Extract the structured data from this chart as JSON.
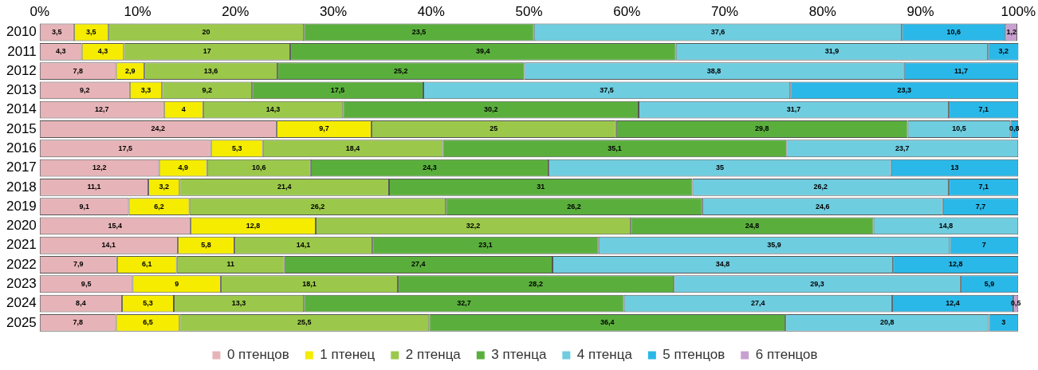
{
  "chart_data": {
    "type": "bar",
    "orientation": "horizontal",
    "stacked": true,
    "legend": "bottom",
    "grid": false,
    "categories": [
      "2010",
      "2011",
      "2012",
      "2013",
      "2014",
      "2015",
      "2016",
      "2017",
      "2018",
      "2019",
      "2020",
      "2021",
      "2022",
      "2023",
      "2024",
      "2025"
    ],
    "xlim": [
      0,
      100
    ],
    "xticks": [
      {
        "value": 0,
        "label": "0%"
      },
      {
        "value": 10,
        "label": "10%"
      },
      {
        "value": 20,
        "label": "20%"
      },
      {
        "value": 30,
        "label": "30%"
      },
      {
        "value": 40,
        "label": "40%"
      },
      {
        "value": 50,
        "label": "50%"
      },
      {
        "value": 60,
        "label": "60%"
      },
      {
        "value": 70,
        "label": "70%"
      },
      {
        "value": 80,
        "label": "80%"
      },
      {
        "value": 90,
        "label": "90%"
      },
      {
        "value": 100,
        "label": "100%"
      }
    ],
    "series": [
      {
        "name": "0 птенцов",
        "color": "#e6b4b8",
        "values": [
          3.5,
          4.3,
          7.8,
          9.2,
          12.7,
          24.2,
          17.5,
          12.2,
          11.1,
          9.1,
          15.4,
          14.1,
          7.9,
          9.5,
          8.4,
          7.8
        ],
        "value_labels": [
          "3,5",
          "4,3",
          "7,8",
          "9,2",
          "12,7",
          "24,2",
          "17,5",
          "12,2",
          "11,1",
          "9,1",
          "15,4",
          "14,1",
          "7,9",
          "9,5",
          "8,4",
          "7,8"
        ]
      },
      {
        "name": "1 птенец",
        "color": "#f5ec00",
        "values": [
          3.5,
          4.3,
          2.9,
          3.3,
          4,
          9.7,
          5.3,
          4.9,
          3.2,
          6.2,
          12.8,
          5.8,
          6.1,
          9,
          5.3,
          6.5
        ],
        "value_labels": [
          "3,5",
          "4,3",
          "2,9",
          "3,3",
          "4",
          "9,7",
          "5,3",
          "4,9",
          "3,2",
          "6,2",
          "12,8",
          "5,8",
          "6,1",
          "9",
          "5,3",
          "6,5"
        ]
      },
      {
        "name": "2 птенца",
        "color": "#9bc84a",
        "values": [
          20,
          17,
          13.6,
          9.2,
          14.3,
          25,
          18.4,
          10.6,
          21.4,
          26.2,
          32.2,
          14.1,
          11,
          18.1,
          13.3,
          25.5
        ],
        "value_labels": [
          "20",
          "17",
          "13,6",
          "9,2",
          "14,3",
          "25",
          "18,4",
          "10,6",
          "21,4",
          "26,2",
          "32,2",
          "14,1",
          "11",
          "18,1",
          "13,3",
          "25,5"
        ]
      },
      {
        "name": "3 птенца",
        "color": "#5aaf3c",
        "values": [
          23.5,
          39.4,
          25.2,
          17.5,
          30.2,
          29.8,
          35.1,
          24.3,
          31,
          26.2,
          24.8,
          23.1,
          27.4,
          28.2,
          32.7,
          36.4
        ],
        "value_labels": [
          "23,5",
          "39,4",
          "25,2",
          "17,5",
          "30,2",
          "29,8",
          "35,1",
          "24,3",
          "31",
          "26,2",
          "24,8",
          "23,1",
          "27,4",
          "28,2",
          "32,7",
          "36,4"
        ]
      },
      {
        "name": "4 птенца",
        "color": "#6fcde0",
        "values": [
          37.6,
          31.9,
          38.8,
          37.5,
          31.7,
          10.5,
          23.7,
          35,
          26.2,
          24.6,
          14.8,
          35.9,
          34.8,
          29.3,
          27.4,
          20.8
        ],
        "value_labels": [
          "37,6",
          "31,9",
          "38,8",
          "37,5",
          "31,7",
          "10,5",
          "23,7",
          "35",
          "26,2",
          "24,6",
          "14,8",
          "35,9",
          "34,8",
          "29,3",
          "27,4",
          "20,8"
        ]
      },
      {
        "name": "5 птенцов",
        "color": "#2ab8e8",
        "values": [
          10.6,
          3.2,
          11.7,
          23.3,
          7.1,
          0.8,
          null,
          13,
          7.1,
          7.7,
          null,
          7,
          12.8,
          5.9,
          12.4,
          3
        ],
        "value_labels": [
          "10,6",
          "3,2",
          "11,7",
          "23,3",
          "7,1",
          "0,8",
          null,
          "13",
          "7,1",
          "7,7",
          null,
          "7",
          "12,8",
          "5,9",
          "12,4",
          "3"
        ]
      },
      {
        "name": "6 птенцов",
        "color": "#c8a0d0",
        "values": [
          1.2,
          null,
          null,
          null,
          null,
          null,
          null,
          null,
          null,
          null,
          null,
          null,
          null,
          null,
          0.5,
          null
        ],
        "value_labels": [
          "1,2",
          null,
          null,
          null,
          null,
          null,
          null,
          null,
          null,
          null,
          null,
          null,
          null,
          null,
          "0,5",
          null
        ]
      }
    ]
  }
}
